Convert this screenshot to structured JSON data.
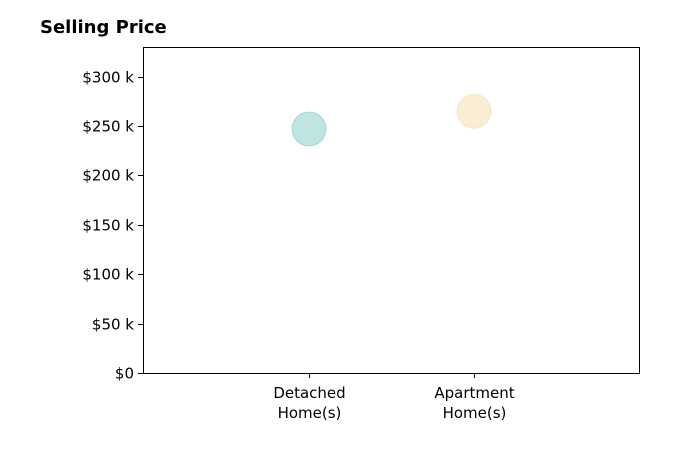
{
  "chart_data": {
    "type": "scatter",
    "title": "Selling Price",
    "xlabel": "",
    "ylabel": "",
    "categories": [
      [
        "Detached",
        "Home(s)"
      ],
      [
        "Apartment",
        "Home(s)"
      ]
    ],
    "values": [
      247000,
      265000
    ],
    "point_colors": [
      "#7fcac3",
      "#f4dcaa"
    ],
    "ylim": [
      0,
      330000
    ],
    "yticks": [
      0,
      50000,
      100000,
      150000,
      200000,
      250000,
      300000
    ],
    "ytick_labels": [
      "$0",
      "$50 k",
      "$100 k",
      "$150 k",
      "$200 k",
      "$250 k",
      "$300 k"
    ],
    "grid": false,
    "legend": "none"
  }
}
